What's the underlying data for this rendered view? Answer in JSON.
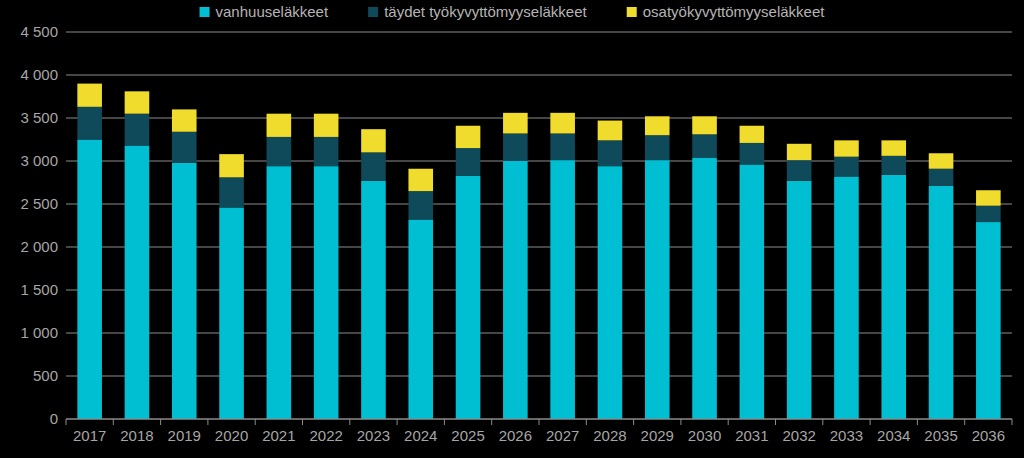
{
  "chart_data": {
    "type": "bar",
    "stacked": true,
    "grid": true,
    "legend": "top",
    "categories": [
      "2017",
      "2018",
      "2019",
      "2020",
      "2021",
      "2022",
      "2023",
      "2024",
      "2025",
      "2026",
      "2027",
      "2028",
      "2029",
      "2030",
      "2031",
      "2032",
      "2033",
      "2034",
      "2035",
      "2036"
    ],
    "series": [
      {
        "name": "vanhuuseläkkeet",
        "color": "#00bfd3",
        "values": [
          3250,
          3180,
          2980,
          2460,
          2940,
          2940,
          2770,
          2320,
          2830,
          3000,
          3010,
          2940,
          3010,
          3040,
          2960,
          2770,
          2820,
          2840,
          2710,
          2290
        ]
      },
      {
        "name": "täydet työkyvyttömyyseläkkeet",
        "color": "#0e4a5a",
        "values": [
          380,
          370,
          360,
          350,
          340,
          340,
          330,
          330,
          320,
          320,
          310,
          300,
          290,
          270,
          250,
          240,
          230,
          220,
          200,
          190
        ]
      },
      {
        "name": "osatyökyvyttömyyseläkkeet",
        "color": "#f0dc2c",
        "values": [
          270,
          260,
          260,
          270,
          270,
          270,
          270,
          260,
          260,
          240,
          240,
          230,
          220,
          210,
          200,
          190,
          190,
          180,
          180,
          180
        ]
      }
    ],
    "ylim": [
      0,
      4500
    ],
    "yticks": [
      0,
      500,
      {
        "value": 1000,
        "label": "1 000"
      },
      {
        "value": 1500,
        "label": "1 500"
      },
      {
        "value": 2000,
        "label": "2 000"
      },
      {
        "value": 2500,
        "label": "2 500"
      },
      {
        "value": 3000,
        "label": "3 000"
      },
      {
        "value": 3500,
        "label": "3 500"
      },
      {
        "value": 4000,
        "label": "4 000"
      },
      {
        "value": 4500,
        "label": "4 500"
      }
    ]
  }
}
